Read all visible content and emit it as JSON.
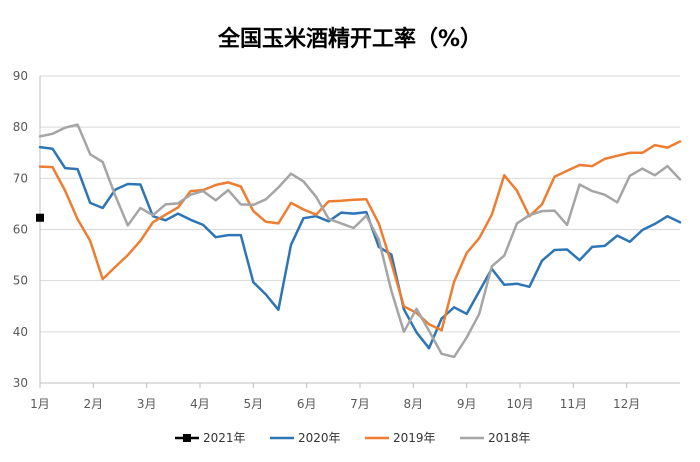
{
  "chart_data": {
    "type": "line",
    "title": "全国玉米酒精开工率（%）",
    "xlabel": "",
    "ylabel": "",
    "ylim": [
      30,
      90
    ],
    "yticks": [
      30,
      40,
      50,
      60,
      70,
      80,
      90
    ],
    "x_tick_labels": [
      "1月",
      "2月",
      "3月",
      "4月",
      "5月",
      "6月",
      "7月",
      "8月",
      "9月",
      "10月",
      "11月",
      "12月"
    ],
    "x_unit": "week",
    "xlim": [
      1,
      52
    ],
    "grid": "horizontal",
    "legend_position": "bottom",
    "series": [
      {
        "name": "2021年",
        "color": "#000000",
        "marker": "square",
        "x": [
          1
        ],
        "y": [
          62.3
        ]
      },
      {
        "name": "2020年",
        "color": "#2e75b6",
        "x": [
          1,
          2,
          3,
          4,
          5,
          6,
          7,
          8,
          9,
          10,
          11,
          12,
          13,
          14,
          15,
          16,
          17,
          18,
          19,
          20,
          21,
          22,
          23,
          24,
          25,
          26,
          27,
          28,
          29,
          30,
          31,
          32,
          33,
          34,
          35,
          36,
          37,
          38,
          39,
          40,
          41,
          42,
          43,
          44,
          45,
          46,
          47,
          48,
          49,
          50,
          51,
          52
        ],
        "y": [
          76.1,
          75.8,
          72.0,
          71.8,
          65.2,
          64.2,
          67.8,
          68.9,
          68.8,
          62.6,
          61.8,
          63.1,
          61.9,
          60.9,
          58.5,
          58.9,
          58.9,
          49.7,
          47.3,
          44.3,
          57.0,
          62.2,
          62.6,
          61.6,
          63.3,
          63.1,
          63.4,
          56.6,
          55.1,
          44.4,
          39.9,
          36.8,
          42.6,
          44.8,
          43.5,
          47.9,
          52.3,
          49.2,
          49.4,
          48.8,
          53.9,
          56.0,
          56.1,
          54.0,
          56.6,
          56.8,
          58.8,
          57.6,
          59.9,
          61.1,
          62.6,
          61.4
        ]
      },
      {
        "name": "2019年",
        "color": "#ed7d31",
        "x": [
          1,
          2,
          3,
          4,
          5,
          6,
          7,
          8,
          9,
          10,
          11,
          12,
          13,
          14,
          15,
          16,
          17,
          18,
          19,
          20,
          21,
          22,
          23,
          24,
          25,
          26,
          27,
          28,
          29,
          30,
          31,
          32,
          33,
          34,
          35,
          36,
          37,
          38,
          39,
          40,
          41,
          42,
          43,
          44,
          45,
          46,
          47,
          48,
          49,
          50,
          51,
          52
        ],
        "y": [
          72.3,
          72.2,
          67.6,
          62.0,
          57.8,
          50.3,
          52.7,
          55.0,
          57.8,
          61.4,
          62.9,
          64.3,
          67.5,
          67.7,
          68.7,
          69.2,
          68.4,
          63.6,
          61.5,
          61.2,
          65.2,
          63.9,
          62.9,
          65.5,
          65.6,
          65.8,
          65.9,
          61.2,
          53.4,
          45.0,
          43.7,
          41.5,
          40.3,
          49.8,
          55.4,
          58.3,
          62.9,
          70.6,
          67.6,
          62.6,
          64.9,
          70.3,
          71.5,
          72.6,
          72.4,
          73.8,
          74.4,
          75.0,
          75.0,
          76.5,
          76.0,
          77.2
        ]
      },
      {
        "name": "2018年",
        "color": "#a5a5a5",
        "x": [
          1,
          2,
          3,
          4,
          5,
          6,
          7,
          8,
          9,
          10,
          11,
          12,
          13,
          14,
          15,
          16,
          17,
          18,
          19,
          20,
          21,
          22,
          23,
          24,
          25,
          26,
          27,
          28,
          29,
          30,
          31,
          32,
          33,
          34,
          35,
          36,
          37,
          38,
          39,
          40,
          41,
          42,
          43,
          44,
          45,
          46,
          47,
          48,
          49,
          50,
          51,
          52
        ],
        "y": [
          78.2,
          78.7,
          79.9,
          80.5,
          74.7,
          73.2,
          66.6,
          60.8,
          64.2,
          62.8,
          64.9,
          65.1,
          66.8,
          67.5,
          65.7,
          67.7,
          64.9,
          64.8,
          65.9,
          68.2,
          70.9,
          69.4,
          66.4,
          62.1,
          61.2,
          60.3,
          62.7,
          58.0,
          48.0,
          40.0,
          44.5,
          40.2,
          35.7,
          35.1,
          38.9,
          43.5,
          52.8,
          54.9,
          61.2,
          62.8,
          63.6,
          63.7,
          60.9,
          68.8,
          67.5,
          66.8,
          65.3,
          70.5,
          71.9,
          70.6,
          72.4,
          69.8
        ]
      }
    ]
  }
}
